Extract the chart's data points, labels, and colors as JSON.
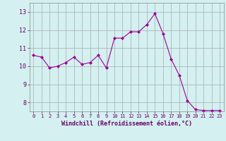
{
  "x": [
    0,
    1,
    2,
    3,
    4,
    5,
    6,
    7,
    8,
    9,
    10,
    11,
    12,
    13,
    14,
    15,
    16,
    17,
    18,
    19,
    20,
    21,
    22,
    23
  ],
  "y": [
    10.6,
    10.5,
    9.9,
    10.0,
    10.2,
    10.5,
    10.1,
    10.2,
    10.6,
    9.9,
    11.55,
    11.55,
    11.9,
    11.9,
    12.3,
    12.9,
    11.8,
    10.4,
    9.5,
    8.1,
    7.6,
    7.55,
    7.55,
    7.55
  ],
  "line_color": "#990099",
  "marker": "D",
  "marker_size": 2,
  "bg_color": "#d4f0f0",
  "grid_color": "#aaaaaa",
  "xlabel": "Windchill (Refroidissement éolien,°C)",
  "xlabel_color": "#660066",
  "tick_color": "#660066",
  "ylim": [
    7.5,
    13.5
  ],
  "xlim": [
    -0.5,
    23.5
  ],
  "yticks": [
    8,
    9,
    10,
    11,
    12,
    13
  ],
  "xticks": [
    0,
    1,
    2,
    3,
    4,
    5,
    6,
    7,
    8,
    9,
    10,
    11,
    12,
    13,
    14,
    15,
    16,
    17,
    18,
    19,
    20,
    21,
    22,
    23
  ]
}
